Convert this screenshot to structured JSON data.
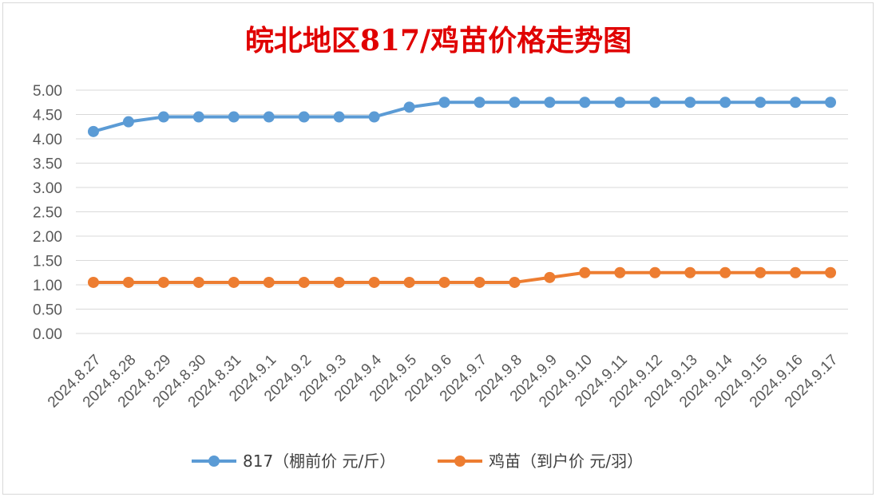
{
  "chart_data": {
    "type": "line",
    "title": "皖北地区817/鸡苗价格走势图",
    "categories": [
      "2024.8.27",
      "2024.8.28",
      "2024.8.29",
      "2024.8.30",
      "2024.8.31",
      "2024.9.1",
      "2024.9.2",
      "2024.9.3",
      "2024.9.4",
      "2024.9.5",
      "2024.9.6",
      "2024.9.7",
      "2024.9.8",
      "2024.9.9",
      "2024.9.10",
      "2024.9.11",
      "2024.9.12",
      "2024.9.13",
      "2024.9.14",
      "2024.9.15",
      "2024.9.16",
      "2024.9.17"
    ],
    "series": [
      {
        "name": "817（棚前价 元/斤）",
        "color": "#5b9bd5",
        "values": [
          4.15,
          4.35,
          4.45,
          4.45,
          4.45,
          4.45,
          4.45,
          4.45,
          4.45,
          4.65,
          4.75,
          4.75,
          4.75,
          4.75,
          4.75,
          4.75,
          4.75,
          4.75,
          4.75,
          4.75,
          4.75,
          4.75
        ]
      },
      {
        "name": "鸡苗（到户价 元/羽）",
        "color": "#ed7d31",
        "values": [
          1.05,
          1.05,
          1.05,
          1.05,
          1.05,
          1.05,
          1.05,
          1.05,
          1.05,
          1.05,
          1.05,
          1.05,
          1.05,
          1.15,
          1.25,
          1.25,
          1.25,
          1.25,
          1.25,
          1.25,
          1.25,
          1.25
        ]
      }
    ],
    "yticks": [
      "0.00",
      "0.50",
      "1.00",
      "1.50",
      "2.00",
      "2.50",
      "3.00",
      "3.50",
      "4.00",
      "4.50",
      "5.00"
    ],
    "ylim": [
      0,
      5
    ],
    "grid": true,
    "legend": "bottom"
  }
}
